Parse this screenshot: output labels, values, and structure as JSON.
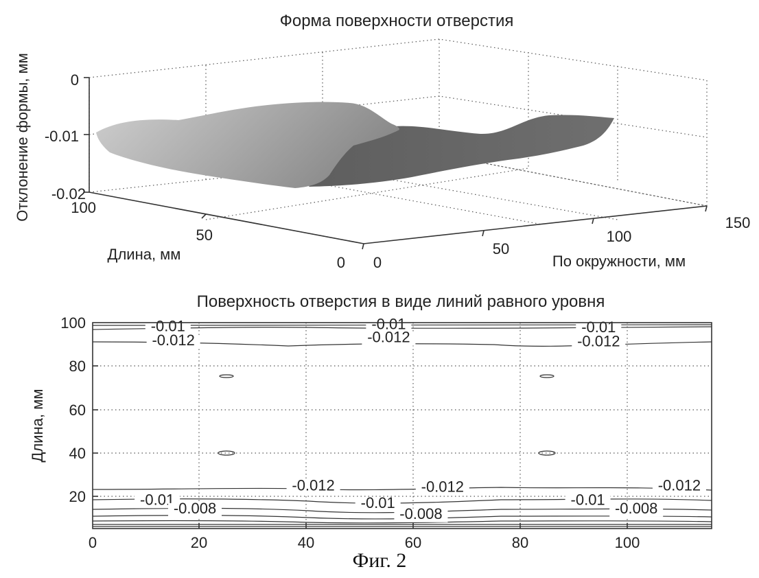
{
  "figure_caption": "Фиг. 2",
  "chart_data": [
    {
      "type": "surface",
      "title": "Форма поверхности отверстия",
      "xlabel": "По окружности, мм",
      "ylabel": "Длина, мм",
      "zlabel": "Отклонение формы, мм",
      "x_ticks": [
        "0",
        "50",
        "100",
        "150"
      ],
      "y_ticks": [
        "0",
        "50",
        "100"
      ],
      "z_ticks": [
        "0",
        "-0.01",
        "-0.02"
      ],
      "xlim": [
        0,
        150
      ],
      "ylim": [
        0,
        100
      ],
      "zlim": [
        -0.02,
        0
      ],
      "grid": true
    },
    {
      "type": "contour",
      "title": "Поверхность отверстия в виде линий равного уровня",
      "xlabel": "",
      "ylabel": "Длина, мм",
      "x_ticks": [
        "0",
        "20",
        "40",
        "60",
        "80",
        "100"
      ],
      "y_ticks": [
        "20",
        "40",
        "60",
        "80",
        "100"
      ],
      "xlim": [
        0,
        115
      ],
      "ylim": [
        5,
        100
      ],
      "grid": true,
      "levels": [
        -0.012,
        -0.01,
        -0.008
      ],
      "contour_labels": [
        {
          "text": "-0.01",
          "x": 14,
          "y": 96
        },
        {
          "text": "-0.012",
          "x": 15,
          "y": 89.5
        },
        {
          "text": "-0.01",
          "x": 55,
          "y": 97
        },
        {
          "text": "-0.012",
          "x": 55,
          "y": 91
        },
        {
          "text": "-0.01",
          "x": 94,
          "y": 95.5
        },
        {
          "text": "-0.012",
          "x": 94,
          "y": 89
        },
        {
          "text": "-0.012",
          "x": 41,
          "y": 22.5
        },
        {
          "text": "-0.012",
          "x": 65,
          "y": 22
        },
        {
          "text": "-0.012",
          "x": 109,
          "y": 22.5
        },
        {
          "text": "-0.01",
          "x": 12,
          "y": 16
        },
        {
          "text": "-0.01",
          "x": 53,
          "y": 14.5
        },
        {
          "text": "-0.01",
          "x": 92,
          "y": 16
        },
        {
          "text": "-0.008",
          "x": 19,
          "y": 12
        },
        {
          "text": "-0.008",
          "x": 61,
          "y": 9.5
        },
        {
          "text": "-0.008",
          "x": 101,
          "y": 12
        }
      ]
    }
  ]
}
